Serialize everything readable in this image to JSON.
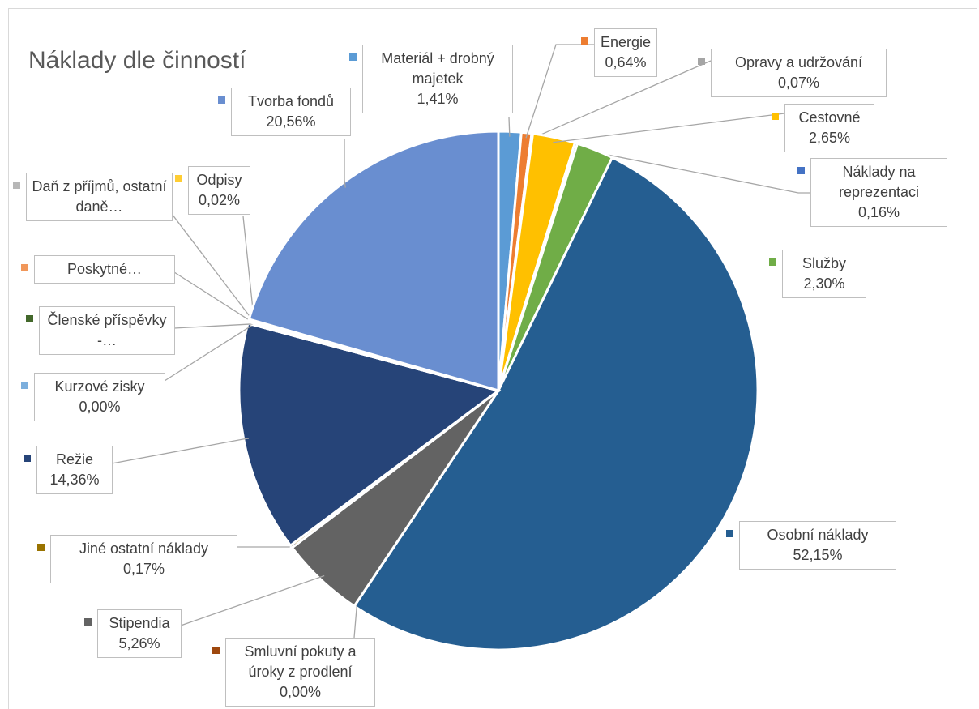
{
  "chart_data": {
    "type": "pie",
    "title": "Náklady dle činností",
    "categories": [
      "Materiál + drobný majetek",
      "Energie",
      "Opravy a udržování",
      "Cestovné",
      "Náklady na reprezentaci",
      "Služby",
      "Osobní náklady",
      "Smluvní pokuty a úroky z prodlení",
      "Stipendia",
      "Jiné ostatní náklady",
      "Režie",
      "Kurzové zisky",
      "Členské příspěvky -…",
      "Poskytné…",
      "Daň z příjmů, ostatní daně…",
      "Odpisy",
      "Tvorba fondů"
    ],
    "values": [
      1.41,
      0.64,
      0.07,
      2.65,
      0.16,
      2.3,
      52.15,
      0.0,
      5.26,
      0.17,
      14.36,
      0.0,
      0.1,
      0.05,
      0.1,
      0.02,
      20.56
    ],
    "value_labels": [
      "1,41%",
      "0,64%",
      "0,07%",
      "2,65%",
      "0,16%",
      "2,30%",
      "52,15%",
      "0,00%",
      "5,26%",
      "0,17%",
      "14,36%",
      "0,00%",
      null,
      null,
      null,
      "0,02%",
      "20,56%"
    ],
    "colors": [
      "#5b9bd5",
      "#ed7d31",
      "#a5a5a5",
      "#ffc000",
      "#4472c4",
      "#70ad47",
      "#255e91",
      "#9e480e",
      "#636363",
      "#997300",
      "#264478",
      "#7cafdd",
      "#43682b",
      "#f1975a",
      "#b7b7b7",
      "#ffcd33",
      "#698ed0"
    ]
  }
}
